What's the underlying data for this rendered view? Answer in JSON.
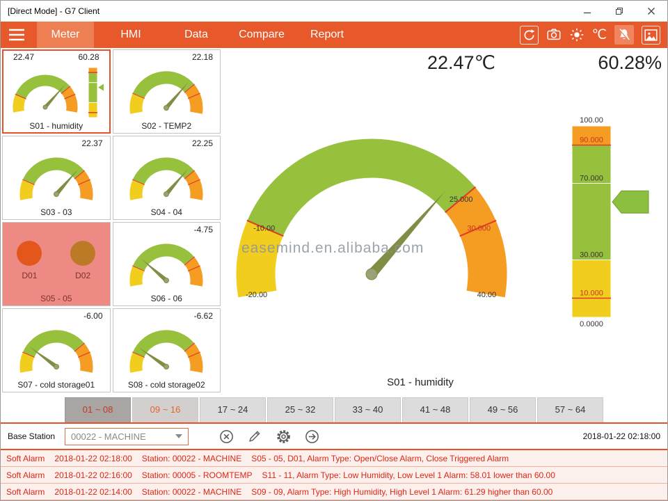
{
  "window": {
    "title": "[Direct Mode] - G7 Client"
  },
  "nav": {
    "tabs": [
      {
        "label": "Meter",
        "active": true
      },
      {
        "label": "HMI",
        "active": false
      },
      {
        "label": "Data",
        "active": false
      },
      {
        "label": "Compare",
        "active": false
      },
      {
        "label": "Report",
        "active": false
      }
    ],
    "unit": "℃"
  },
  "colors": {
    "accent": "#e7582b",
    "gauge_green": "#97c13c",
    "gauge_yellow": "#f1cd1e",
    "gauge_orange": "#f59c23",
    "alarm_red": "#e02517"
  },
  "scales": {
    "gauge": {
      "min": -20,
      "max": 40,
      "segments": [
        {
          "from": -20,
          "to": -10,
          "color": "#f1cd1e"
        },
        {
          "from": -10,
          "to": 25,
          "color": "#97c13c"
        },
        {
          "from": 25,
          "to": 40,
          "color": "#f59c23"
        }
      ],
      "alarm_lines": [
        -10,
        25,
        30
      ]
    },
    "bar": {
      "min": 0,
      "max": 100,
      "segments": [
        {
          "from": 0,
          "to": 30,
          "color": "#f1cd1e"
        },
        {
          "from": 30,
          "to": 70,
          "color": "#97c13c"
        },
        {
          "from": 70,
          "to": 90,
          "color": "#97c13c"
        },
        {
          "from": 90,
          "to": 100,
          "color": "#f59c23"
        }
      ],
      "alarm_lines": [
        10,
        90
      ]
    }
  },
  "meters": {
    "cards": [
      {
        "label": "S01 - humidity",
        "type": "gauge+bar",
        "selected": true,
        "values": [
          "22.47",
          "60.28"
        ],
        "gauge_value": 22.47,
        "bar_value": 60.28
      },
      {
        "label": "S02 - TEMP2",
        "type": "gauge",
        "selected": false,
        "values": [
          "22.18"
        ],
        "gauge_value": 22.18
      },
      {
        "label": "S03 - 03",
        "type": "gauge",
        "selected": false,
        "values": [
          "22.37"
        ],
        "gauge_value": 22.37
      },
      {
        "label": "S04 - 04",
        "type": "gauge",
        "selected": false,
        "values": [
          "22.25"
        ],
        "gauge_value": 22.25
      },
      {
        "label": "S05 - 05",
        "type": "digital",
        "selected": false,
        "channels": [
          {
            "label": "D01",
            "color": "#e4571c"
          },
          {
            "label": "D02",
            "color": "#bd7a26"
          }
        ]
      },
      {
        "label": "S06 - 06",
        "type": "gauge",
        "selected": false,
        "values": [
          "-4.75"
        ],
        "gauge_value": -4.75
      },
      {
        "label": "S07 - cold storage01",
        "type": "gauge",
        "selected": false,
        "values": [
          "-6.00"
        ],
        "gauge_value": -6.0
      },
      {
        "label": "S08 - cold storage02",
        "type": "gauge",
        "selected": false,
        "values": [
          "-6.62"
        ],
        "gauge_value": -6.62
      }
    ]
  },
  "main": {
    "temp_display": "22.47℃",
    "humidity_display": "60.28%",
    "caption": "S01 - humidity",
    "watermark": "easemind.en.alibaba.com",
    "gauge_value": 22.47,
    "bar_value": 60.28,
    "gauge_labels": [
      {
        "v": -20,
        "text": "-20.00",
        "color": "#333333"
      },
      {
        "v": -10,
        "text": "-10.00",
        "color": "#333333"
      },
      {
        "v": 25,
        "text": "25.000",
        "color": "#333333"
      },
      {
        "v": 30,
        "text": "30.000",
        "color": "#c8351f"
      },
      {
        "v": 40,
        "text": "40.00",
        "color": "#333333"
      }
    ],
    "bar_labels": [
      {
        "v": 100,
        "text": "100.00",
        "color": "#333333"
      },
      {
        "v": 90,
        "text": "90.000",
        "color": "#c8351f"
      },
      {
        "v": 70,
        "text": "70.000",
        "color": "#333333"
      },
      {
        "v": 30,
        "text": "30.000",
        "color": "#333333"
      },
      {
        "v": 10,
        "text": "10.000",
        "color": "#c8351f"
      },
      {
        "v": 0,
        "text": "0.0000",
        "color": "#333333"
      }
    ]
  },
  "range_tabs": [
    {
      "label": "01 ~ 08",
      "state": "active"
    },
    {
      "label": "09 ~ 16",
      "state": "alarm"
    },
    {
      "label": "17 ~ 24",
      "state": "normal"
    },
    {
      "label": "25 ~ 32",
      "state": "normal"
    },
    {
      "label": "33 ~ 40",
      "state": "normal"
    },
    {
      "label": "41 ~ 48",
      "state": "normal"
    },
    {
      "label": "49 ~ 56",
      "state": "normal"
    },
    {
      "label": "57 ~ 64",
      "state": "normal"
    }
  ],
  "toolbar": {
    "base_station_label": "Base Station",
    "station_value": "00022 - MACHINE",
    "timestamp": "2018-01-22 02:18:00"
  },
  "alarms": [
    {
      "severity": "Soft Alarm",
      "time": "2018-01-22 02:18:00",
      "station": "Station: 00022 - MACHINE",
      "detail": "S05 - 05, D01, Alarm Type: Open/Close Alarm, Close Triggered Alarm"
    },
    {
      "severity": "Soft Alarm",
      "time": "2018-01-22 02:16:00",
      "station": "Station: 00005 - ROOMTEMP",
      "detail": "S11 - 11, Alarm Type: Low Humidity, Low Level 1 Alarm: 58.01 lower than 60.00"
    },
    {
      "severity": "Soft Alarm",
      "time": "2018-01-22 02:14:00",
      "station": "Station: 00022 - MACHINE",
      "detail": "S09 - 09, Alarm Type: High Humidity, High Level 1 Alarm: 61.29 higher than 60.00"
    }
  ]
}
